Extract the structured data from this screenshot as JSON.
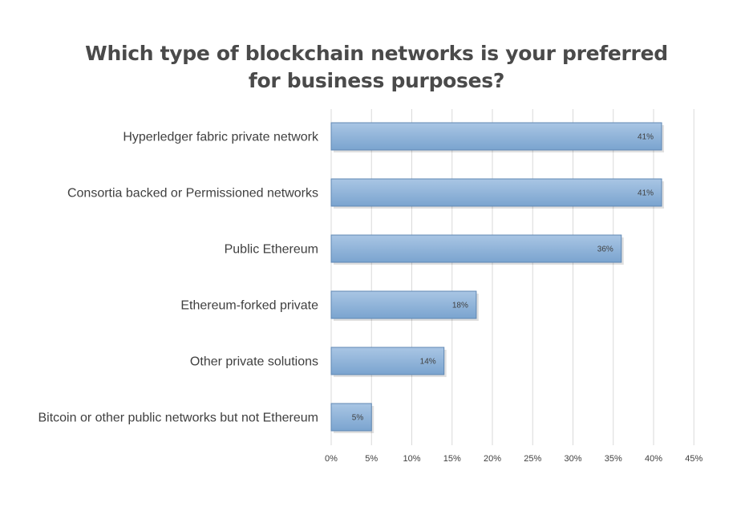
{
  "title_lines": [
    "Which type of blockchain networks is your preferred",
    "for business purposes?"
  ],
  "colors": {
    "bar_top": "#a9c6e4",
    "bar_bottom": "#7aa4cf",
    "bar_edge": "#5f87b3",
    "grid": "#d9d9d9",
    "text": "#404040"
  },
  "chart_data": {
    "type": "bar",
    "orientation": "horizontal",
    "categories": [
      "Hyperledger fabric private network",
      "Consortia backed or Permissioned networks",
      "Public Ethereum",
      "Ethereum-forked private",
      "Other private solutions",
      "Bitcoin or other public networks but not Ethereum"
    ],
    "values": [
      41,
      41,
      36,
      18,
      14,
      5
    ],
    "data_labels": [
      "41%",
      "41%",
      "36%",
      "18%",
      "14%",
      "5%"
    ],
    "title": "Which type of blockchain networks is your preferred for business purposes?",
    "xlim": [
      0,
      45
    ],
    "x_ticks": [
      0,
      5,
      10,
      15,
      20,
      25,
      30,
      35,
      40,
      45
    ],
    "x_tick_labels": [
      "0%",
      "5%",
      "10%",
      "15%",
      "20%",
      "25%",
      "30%",
      "35%",
      "40%",
      "45%"
    ],
    "grid": "vertical",
    "legend": "none"
  }
}
